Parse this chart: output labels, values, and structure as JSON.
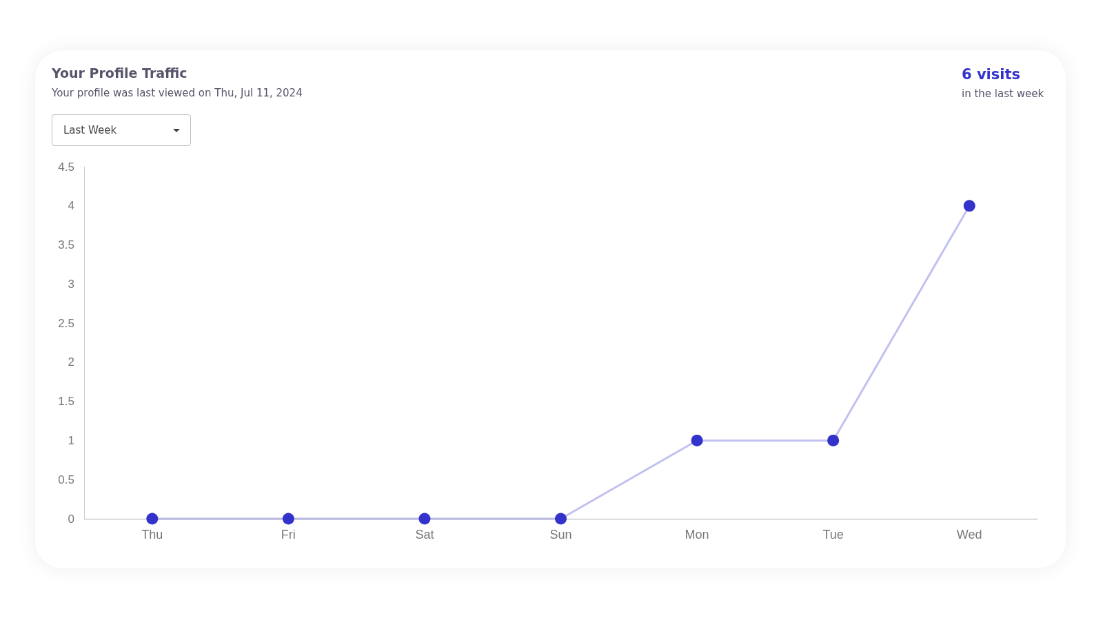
{
  "chart_data": {
    "type": "line",
    "title": "Your Profile Traffic",
    "subtitle": "Your profile was last viewed on Thu, Jul 11, 2024",
    "annotations": [
      "6 visits",
      "in the last week",
      "Last Week"
    ],
    "categories": [
      "Thu",
      "Fri",
      "Sat",
      "Sun",
      "Mon",
      "Tue",
      "Wed"
    ],
    "series": [
      {
        "color": "#3333cc",
        "values": [
          0,
          0,
          0,
          0,
          1,
          1,
          4
        ]
      }
    ],
    "ylim": [
      0,
      4.5
    ],
    "yticks": [
      0,
      0.5,
      1,
      1.5,
      2,
      2.5,
      3,
      3.5,
      4,
      4.5
    ],
    "grid": false,
    "marker": "circle",
    "line_style": "solid"
  }
}
